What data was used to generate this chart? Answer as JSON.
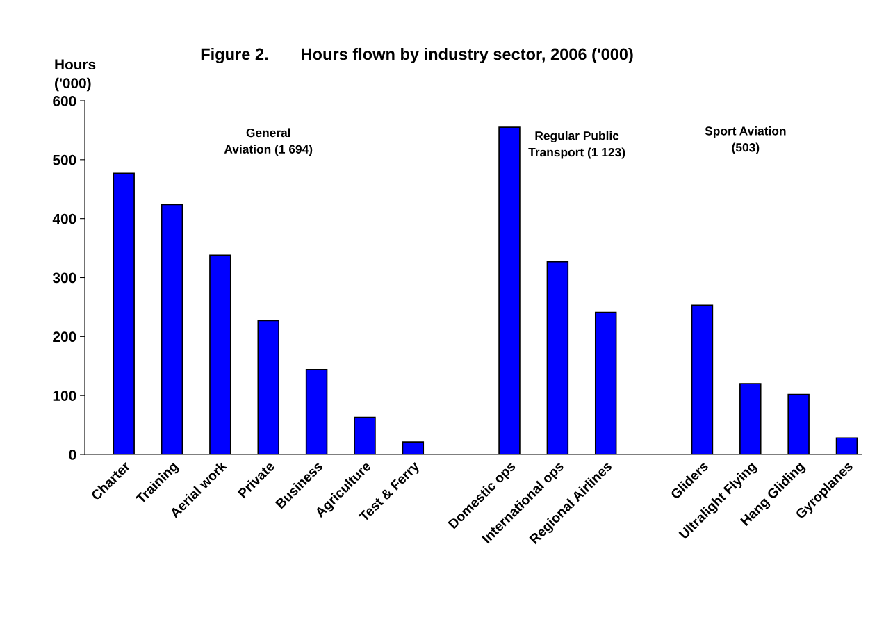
{
  "chart_data": {
    "type": "bar",
    "title": "Figure 2.       Hours flown by industry sector, 2006 ('000)",
    "ylabel": "Hours\n('000)",
    "categories": [
      "Charter",
      "Training",
      "Aerial work",
      "Private",
      "Business",
      "Agriculture",
      "Test & Ferry",
      null,
      "Domestic ops",
      "International ops",
      "Regional Airlines",
      null,
      "Gliders",
      "Ultralight Flying",
      "Hang Gliding",
      "Gyroplanes"
    ],
    "values": [
      477,
      424,
      338,
      227,
      144,
      63,
      21,
      null,
      555,
      327,
      241,
      null,
      253,
      120,
      102,
      28
    ],
    "color": "#0000ff",
    "annotations": [
      "General\nAviation (1 694)",
      "Regular Public\nTransport (1 123)",
      "Sport Aviation\n(503)"
    ],
    "ylim": [
      0,
      600
    ],
    "yticks": [
      0,
      100,
      200,
      300,
      400,
      500,
      600
    ],
    "grid": false,
    "legend": false
  }
}
